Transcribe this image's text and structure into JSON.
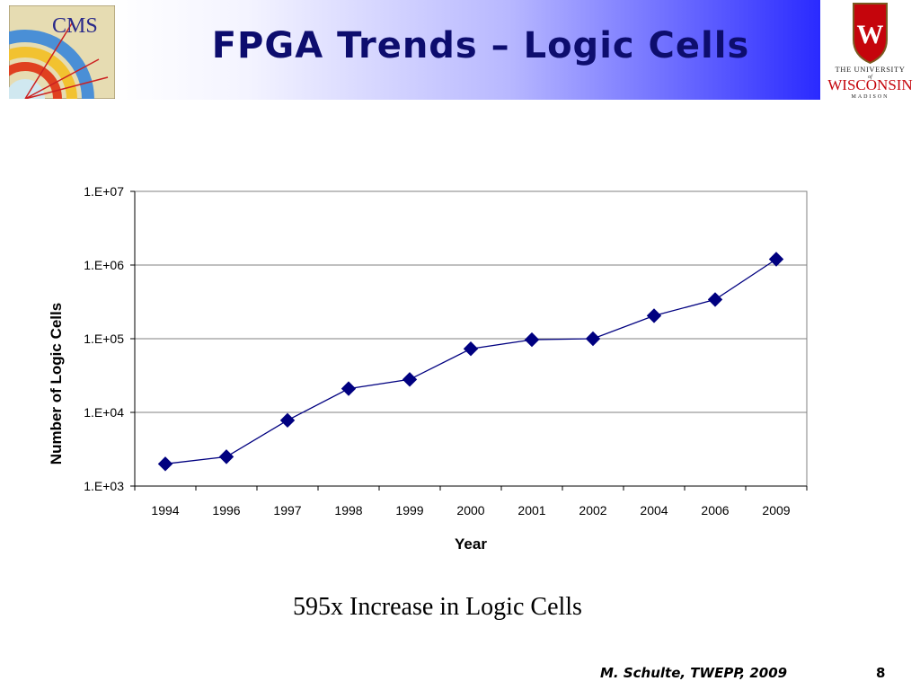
{
  "slide": {
    "title": "FPGA Trends – Logic Cells",
    "caption": "595x Increase in Logic Cells",
    "footer_author": "M. Schulte, TWEPP, 2009",
    "page_number": "8"
  },
  "logos": {
    "left": {
      "text": "CMS",
      "icon": "cms-logo"
    },
    "right": {
      "line1": "THE UNIVERSITY",
      "line2": "of",
      "line3": "WISCONSIN",
      "line4": "MADISON",
      "crest_letter": "W",
      "icon": "uw-crest-logo",
      "crest_color": "#c5050c"
    }
  },
  "colors": {
    "accent": "#0d0d6e",
    "series": "#000080",
    "grid": "#808080"
  },
  "chart_data": {
    "type": "line",
    "xlabel": "Year",
    "ylabel": "Number of Logic Cells",
    "y_scale": "log",
    "ylim": [
      1000,
      10000000
    ],
    "y_ticks": [
      1000,
      10000,
      100000,
      1000000,
      10000000
    ],
    "y_tick_labels": [
      "1.E+03",
      "1.E+04",
      "1.E+05",
      "1.E+06",
      "1.E+07"
    ],
    "categories": [
      "1994",
      "1996",
      "1997",
      "1998",
      "1999",
      "2000",
      "2001",
      "2002",
      "2004",
      "2006",
      "2009"
    ],
    "series": [
      {
        "values": [
          2000,
          2500,
          7800,
          21000,
          28000,
          73000,
          97000,
          100000,
          205000,
          340000,
          1200000
        ]
      }
    ],
    "marker": "diamond",
    "grid": true,
    "legend": "none"
  }
}
